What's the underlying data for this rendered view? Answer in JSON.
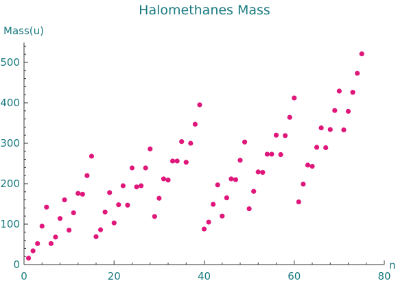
{
  "chart_data": {
    "type": "scatter",
    "title": "Halomethanes Mass",
    "xlabel": "n",
    "ylabel": "Mass(u)",
    "xlim": [
      0,
      80
    ],
    "ylim": [
      0,
      550
    ],
    "x_ticks": [
      0,
      20,
      40,
      60,
      80
    ],
    "y_ticks": [
      0,
      100,
      200,
      300,
      400,
      500
    ],
    "grid": false,
    "point_color": "#e0177a",
    "axis_color": "#1a7a80",
    "series": [
      {
        "x": [
          1,
          2,
          3,
          4,
          5,
          6,
          7,
          8,
          9,
          10,
          11,
          12,
          13,
          14,
          15,
          16,
          17,
          18,
          19,
          20,
          21,
          22,
          23,
          24,
          25,
          26,
          27,
          28,
          29,
          30,
          31,
          32,
          33,
          34,
          35,
          36,
          37,
          38,
          39,
          40,
          41,
          42,
          43,
          44,
          45,
          46,
          47,
          48,
          49,
          50,
          51,
          52,
          53,
          54,
          55,
          56,
          57,
          58,
          59,
          60,
          61,
          62,
          63,
          64,
          65,
          66,
          67,
          68,
          69,
          70,
          71,
          72,
          73,
          74,
          75
        ],
        "y": [
          16,
          34,
          52,
          95,
          142,
          52,
          68,
          114,
          160,
          85,
          128,
          176,
          174,
          220,
          268,
          69,
          86,
          130,
          178,
          103,
          148,
          195,
          147,
          239,
          192,
          195,
          239,
          286,
          119,
          164,
          212,
          209,
          256,
          256,
          304,
          253,
          300,
          347,
          395,
          88,
          105,
          149,
          197,
          120,
          165,
          212,
          210,
          258,
          303,
          138,
          181,
          229,
          228,
          273,
          273,
          320,
          272,
          319,
          364,
          412,
          155,
          199,
          246,
          243,
          290,
          338,
          289,
          334,
          381,
          429,
          333,
          379,
          426,
          473,
          521
        ]
      }
    ]
  }
}
